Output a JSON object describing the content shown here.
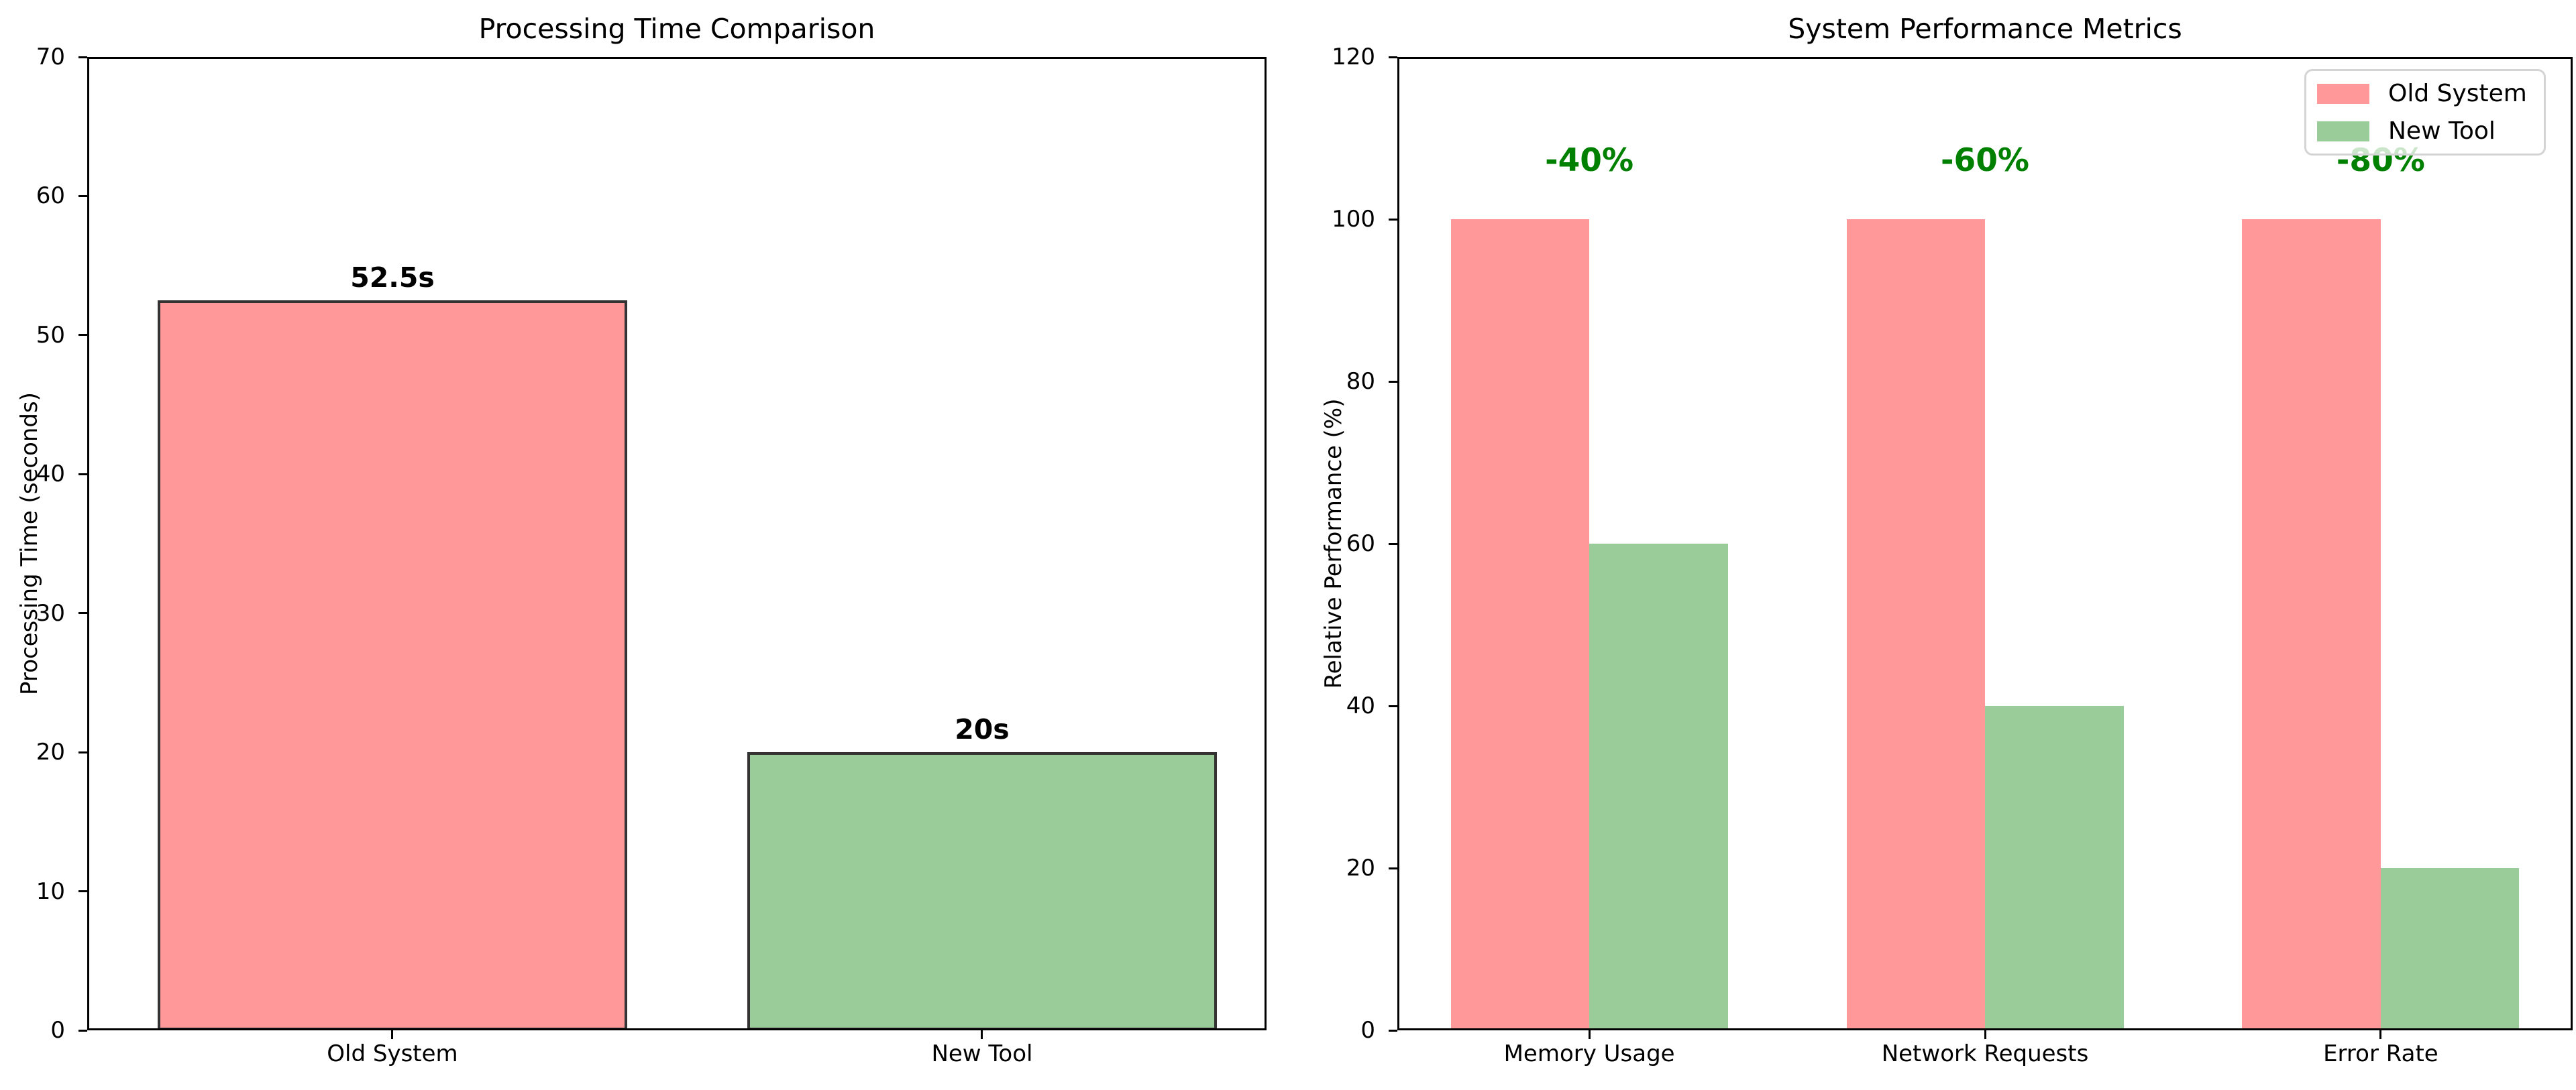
{
  "figure": {
    "background": "#ffffff"
  },
  "chart_data": [
    {
      "type": "bar",
      "title": "Processing Time Comparison",
      "xlabel": "",
      "ylabel": "Processing Time (seconds)",
      "categories": [
        "Old System",
        "New Tool"
      ],
      "values": [
        52.5,
        20
      ],
      "value_labels": [
        "52.5s",
        "20s"
      ],
      "bar_colors": [
        "#ff9999",
        "#99cc99"
      ],
      "bar_edge_color": "#333333",
      "ylim": [
        0,
        70
      ],
      "yticks": [
        0,
        10,
        20,
        30,
        40,
        50,
        60,
        70
      ],
      "grid": false,
      "legend": null
    },
    {
      "type": "bar",
      "title": "System Performance Metrics",
      "xlabel": "",
      "ylabel": "Relative Performance (%)",
      "categories": [
        "Memory Usage",
        "Network Requests",
        "Error Rate"
      ],
      "series": [
        {
          "name": "Old System",
          "color": "#ff9999",
          "values": [
            100,
            100,
            100
          ]
        },
        {
          "name": "New Tool",
          "color": "#99cc99",
          "values": [
            60,
            40,
            20
          ]
        }
      ],
      "annotations": [
        {
          "text": "-40%",
          "category": "Memory Usage",
          "y": 105,
          "color": "#008000"
        },
        {
          "text": "-60%",
          "category": "Network Requests",
          "y": 105,
          "color": "#008000"
        },
        {
          "text": "-80%",
          "category": "Error Rate",
          "y": 105,
          "color": "#008000"
        }
      ],
      "ylim": [
        0,
        120
      ],
      "yticks": [
        0,
        20,
        40,
        60,
        80,
        100,
        120
      ],
      "grid": false,
      "legend": {
        "position": "upper right",
        "entries": [
          "Old System",
          "New Tool"
        ]
      }
    }
  ]
}
